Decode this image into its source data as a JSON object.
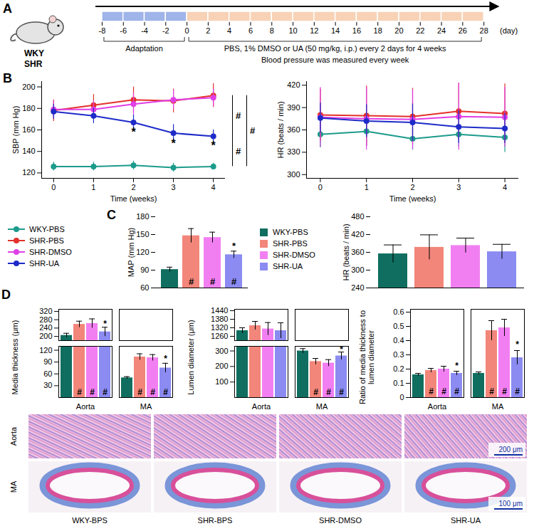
{
  "timeline": {
    "panel": "A",
    "strains": [
      "WKY",
      "SHR"
    ],
    "xlim": [
      -8.6,
      29.4
    ],
    "xticks": [
      -8,
      -6,
      -4,
      -2,
      0,
      2,
      4,
      6,
      8,
      10,
      12,
      14,
      16,
      18,
      20,
      22,
      24,
      26,
      28
    ],
    "xlabel": "(day)",
    "phases": [
      {
        "from": -8,
        "to": 0,
        "color": "#9fb4e8",
        "label": "Adaptation"
      },
      {
        "from": 0,
        "to": 28,
        "color": "#f8d2b6",
        "label": "PBS, 1% DMSO or UA (50 mg/kg, i.p.) every 2 days for 4 weeks"
      }
    ],
    "note": "Blood pressure was measured every week"
  },
  "chart_data": [
    {
      "panel": "B",
      "type": "line",
      "xlabel": "Time (weeks)",
      "ylabel": "SBP (mm Hg)",
      "x": [
        0,
        1,
        2,
        3,
        4
      ],
      "xlim": [
        -0.3,
        4.3
      ],
      "xticks": [
        0,
        1,
        2,
        3,
        4
      ],
      "ylim": [
        115,
        205
      ],
      "yticks": [
        120,
        140,
        160,
        180,
        200
      ],
      "marker": "circle",
      "legend": "bottom",
      "series": [
        {
          "name": "WKY-PBS",
          "color": "#1c9b8c",
          "values": [
            126,
            126,
            127,
            125,
            126
          ],
          "errors": [
            4,
            4,
            4,
            4,
            3
          ]
        },
        {
          "name": "SHR-PBS",
          "color": "#e4312b",
          "values": [
            178,
            183,
            188,
            187,
            192
          ],
          "errors": [
            10,
            10,
            12,
            11,
            11
          ]
        },
        {
          "name": "SHR-DMSO",
          "color": "#e03fe6",
          "values": [
            179,
            179,
            184,
            188,
            190
          ],
          "errors": [
            8,
            8,
            10,
            9,
            8
          ]
        },
        {
          "name": "SHR-UA",
          "color": "#1e2bc8",
          "values": [
            177,
            173,
            167,
            157,
            154
          ],
          "errors": [
            7,
            7,
            7,
            8,
            6
          ]
        }
      ],
      "annotations": [
        {
          "x": 2,
          "y": 158,
          "text": "*"
        },
        {
          "x": 3,
          "y": 147,
          "text": "*"
        },
        {
          "x": 4,
          "y": 145,
          "text": "*"
        }
      ],
      "brackets": [
        {
          "y1": 154,
          "y2": 192,
          "text": "#"
        },
        {
          "y1": 126,
          "y2": 154,
          "text": "#"
        },
        {
          "y1": 126,
          "y2": 192,
          "text": "#"
        }
      ]
    },
    {
      "type": "line",
      "xlabel": "Time (weeks)",
      "ylabel": "HR (beats / min)",
      "x": [
        0,
        1,
        2,
        3,
        4
      ],
      "xlim": [
        -0.3,
        4.3
      ],
      "xticks": [
        0,
        1,
        2,
        3,
        4
      ],
      "ylim": [
        295,
        425
      ],
      "yticks": [
        300,
        330,
        360,
        390,
        420
      ],
      "marker": "circle",
      "series": [
        {
          "name": "WKY-PBS",
          "color": "#1c9b8c",
          "values": [
            354,
            358,
            348,
            354,
            350
          ],
          "errors": [
            18,
            20,
            15,
            17,
            20
          ]
        },
        {
          "name": "SHR-PBS",
          "color": "#e4312b",
          "values": [
            380,
            379,
            378,
            385,
            382
          ],
          "errors": [
            35,
            40,
            38,
            38,
            40
          ]
        },
        {
          "name": "SHR-DMSO",
          "color": "#e03fe6",
          "values": [
            377,
            375,
            374,
            378,
            377
          ],
          "errors": [
            40,
            42,
            40,
            45,
            40
          ]
        },
        {
          "name": "SHR-UA",
          "color": "#1e2bc8",
          "values": [
            376,
            372,
            370,
            364,
            362
          ],
          "errors": [
            20,
            22,
            25,
            22,
            20
          ]
        }
      ]
    },
    {
      "panel": "C",
      "type": "bar",
      "ylabel": "MAP (mm Hg)",
      "categories": [
        "WKY-PBS",
        "SHR-PBS",
        "SHR-DMSO",
        "SHR-UA"
      ],
      "values": [
        91,
        148,
        145,
        116
      ],
      "errors": [
        4,
        12,
        9,
        6
      ],
      "colors": [
        "#0f6e5f",
        "#f2867a",
        "#f27ff2",
        "#8b8bf2"
      ],
      "ylim": [
        60,
        180
      ],
      "yticks": [
        60,
        90,
        120,
        150,
        180
      ],
      "tick_labels": "y",
      "legend": "right",
      "annotations": [
        {
          "category": "SHR-PBS",
          "y": 70,
          "text": "#"
        },
        {
          "category": "SHR-DMSO",
          "y": 70,
          "text": "#"
        },
        {
          "category": "SHR-UA",
          "y": 70,
          "text": "#"
        },
        {
          "category": "SHR-UA",
          "y": 130,
          "text": "*"
        }
      ]
    },
    {
      "type": "bar",
      "ylabel": "HR (beats / min)",
      "categories": [
        "WKY-PBS",
        "SHR-PBS",
        "SHR-DMSO",
        "SHR-UA"
      ],
      "values": [
        355,
        377,
        383,
        362
      ],
      "errors": [
        30,
        42,
        25,
        25
      ],
      "colors": [
        "#0f6e5f",
        "#f2867a",
        "#f27ff2",
        "#8b8bf2"
      ],
      "ylim": [
        240,
        480
      ],
      "yticks": [
        240,
        300,
        360,
        420,
        480
      ],
      "tick_labels": "y"
    },
    {
      "panel": "D",
      "type": "bar",
      "ylabel": "Media thickness (μm)",
      "groups": [
        "Aorta",
        "MA"
      ],
      "series": [
        {
          "name": "WKY-PBS",
          "color": "#0f6e5f",
          "values": [
            205,
            50
          ],
          "errors": [
            10,
            3
          ]
        },
        {
          "name": "SHR-PBS",
          "color": "#f2867a",
          "values": [
            258,
            103
          ],
          "errors": [
            15,
            8
          ]
        },
        {
          "name": "SHR-DMSO",
          "color": "#f27ff2",
          "values": [
            262,
            101
          ],
          "errors": [
            22,
            8
          ]
        },
        {
          "name": "SHR-UA",
          "color": "#8b8bf2",
          "values": [
            222,
            75
          ],
          "errors": [
            22,
            12
          ]
        }
      ],
      "ylim": [
        [
          0,
          130
        ],
        [
          180,
          330
        ]
      ],
      "yticks": [
        [
          30,
          60,
          90,
          120
        ],
        [
          200,
          240,
          280,
          320
        ]
      ],
      "annotations": [
        {
          "group": "Aorta",
          "series": "SHR-PBS",
          "y": 14,
          "text": "#"
        },
        {
          "group": "Aorta",
          "series": "SHR-DMSO",
          "y": 14,
          "text": "#"
        },
        {
          "group": "Aorta",
          "series": "SHR-UA",
          "y": 14,
          "text": "#"
        },
        {
          "group": "MA",
          "series": "SHR-PBS",
          "y": 14,
          "text": "#"
        },
        {
          "group": "MA",
          "series": "SHR-DMSO",
          "y": 14,
          "text": "#"
        },
        {
          "group": "MA",
          "series": "SHR-UA",
          "y": 14,
          "text": "#"
        },
        {
          "group": "Aorta",
          "series": "SHR-UA",
          "y": 258,
          "text": "*"
        },
        {
          "group": "MA",
          "series": "SHR-UA",
          "y": 98,
          "text": "*"
        }
      ]
    },
    {
      "type": "bar",
      "ylabel": "Lumen diameter (μm)",
      "groups": [
        "Aorta",
        "MA"
      ],
      "series": [
        {
          "name": "WKY-PBS",
          "color": "#0f6e5f",
          "values": [
            1300,
            300
          ],
          "errors": [
            20,
            15
          ]
        },
        {
          "name": "SHR-PBS",
          "color": "#f2867a",
          "values": [
            1335,
            232
          ],
          "errors": [
            30,
            20
          ]
        },
        {
          "name": "SHR-DMSO",
          "color": "#f27ff2",
          "values": [
            1312,
            222
          ],
          "errors": [
            45,
            22
          ]
        },
        {
          "name": "SHR-UA",
          "color": "#8b8bf2",
          "values": [
            1300,
            268
          ],
          "errors": [
            55,
            25
          ]
        }
      ],
      "ylim": [
        [
          0,
          330
        ],
        [
          1230,
          1450
        ]
      ],
      "yticks": [
        [
          100,
          200,
          300
        ],
        [
          1260,
          1320,
          1380,
          1440
        ]
      ],
      "annotations": [
        {
          "group": "MA",
          "series": "SHR-PBS",
          "y": 35,
          "text": "#"
        },
        {
          "group": "MA",
          "series": "SHR-DMSO",
          "y": 35,
          "text": "#"
        },
        {
          "group": "MA",
          "series": "SHR-UA",
          "y": 35,
          "text": "#"
        },
        {
          "group": "MA",
          "series": "SHR-UA",
          "y": 310,
          "text": "*"
        }
      ]
    },
    {
      "type": "bar",
      "ylabel": "Ratio of media thickness to lumen diameter",
      "groups": [
        "Aorta",
        "MA"
      ],
      "series": [
        {
          "name": "WKY-PBS",
          "color": "#0f6e5f",
          "values": [
            0.16,
            0.17
          ],
          "errors": [
            0.01,
            0.01
          ]
        },
        {
          "name": "SHR-PBS",
          "color": "#f2867a",
          "values": [
            0.19,
            0.47
          ],
          "errors": [
            0.015,
            0.07
          ]
        },
        {
          "name": "SHR-DMSO",
          "color": "#f27ff2",
          "values": [
            0.2,
            0.49
          ],
          "errors": [
            0.02,
            0.06
          ]
        },
        {
          "name": "SHR-UA",
          "color": "#8b8bf2",
          "values": [
            0.17,
            0.28
          ],
          "errors": [
            0.015,
            0.05
          ]
        }
      ],
      "ylim": [
        0,
        0.62
      ],
      "yticks": [
        0,
        0.1,
        0.2,
        0.3,
        0.4,
        0.5,
        0.6
      ],
      "annotations": [
        {
          "group": "Aorta",
          "series": "SHR-PBS",
          "y": 0.04,
          "text": "#"
        },
        {
          "group": "Aorta",
          "series": "SHR-DMSO",
          "y": 0.04,
          "text": "#"
        },
        {
          "group": "Aorta",
          "series": "SHR-UA",
          "y": 0.04,
          "text": "#"
        },
        {
          "group": "MA",
          "series": "SHR-PBS",
          "y": 0.04,
          "text": "#"
        },
        {
          "group": "MA",
          "series": "SHR-DMSO",
          "y": 0.04,
          "text": "#"
        },
        {
          "group": "MA",
          "series": "SHR-UA",
          "y": 0.04,
          "text": "#"
        },
        {
          "group": "Aorta",
          "series": "SHR-UA",
          "y": 0.22,
          "text": "*"
        },
        {
          "group": "MA",
          "series": "SHR-UA",
          "y": 0.37,
          "text": "*"
        }
      ]
    }
  ],
  "histology": {
    "rows": [
      "Aorta",
      "MA"
    ],
    "columns": [
      "WKY-BPS",
      "SHR-BPS",
      "SHR-DMSO",
      "SHR-UA"
    ],
    "scale_bars": [
      "200 μm",
      "100 μm"
    ]
  }
}
